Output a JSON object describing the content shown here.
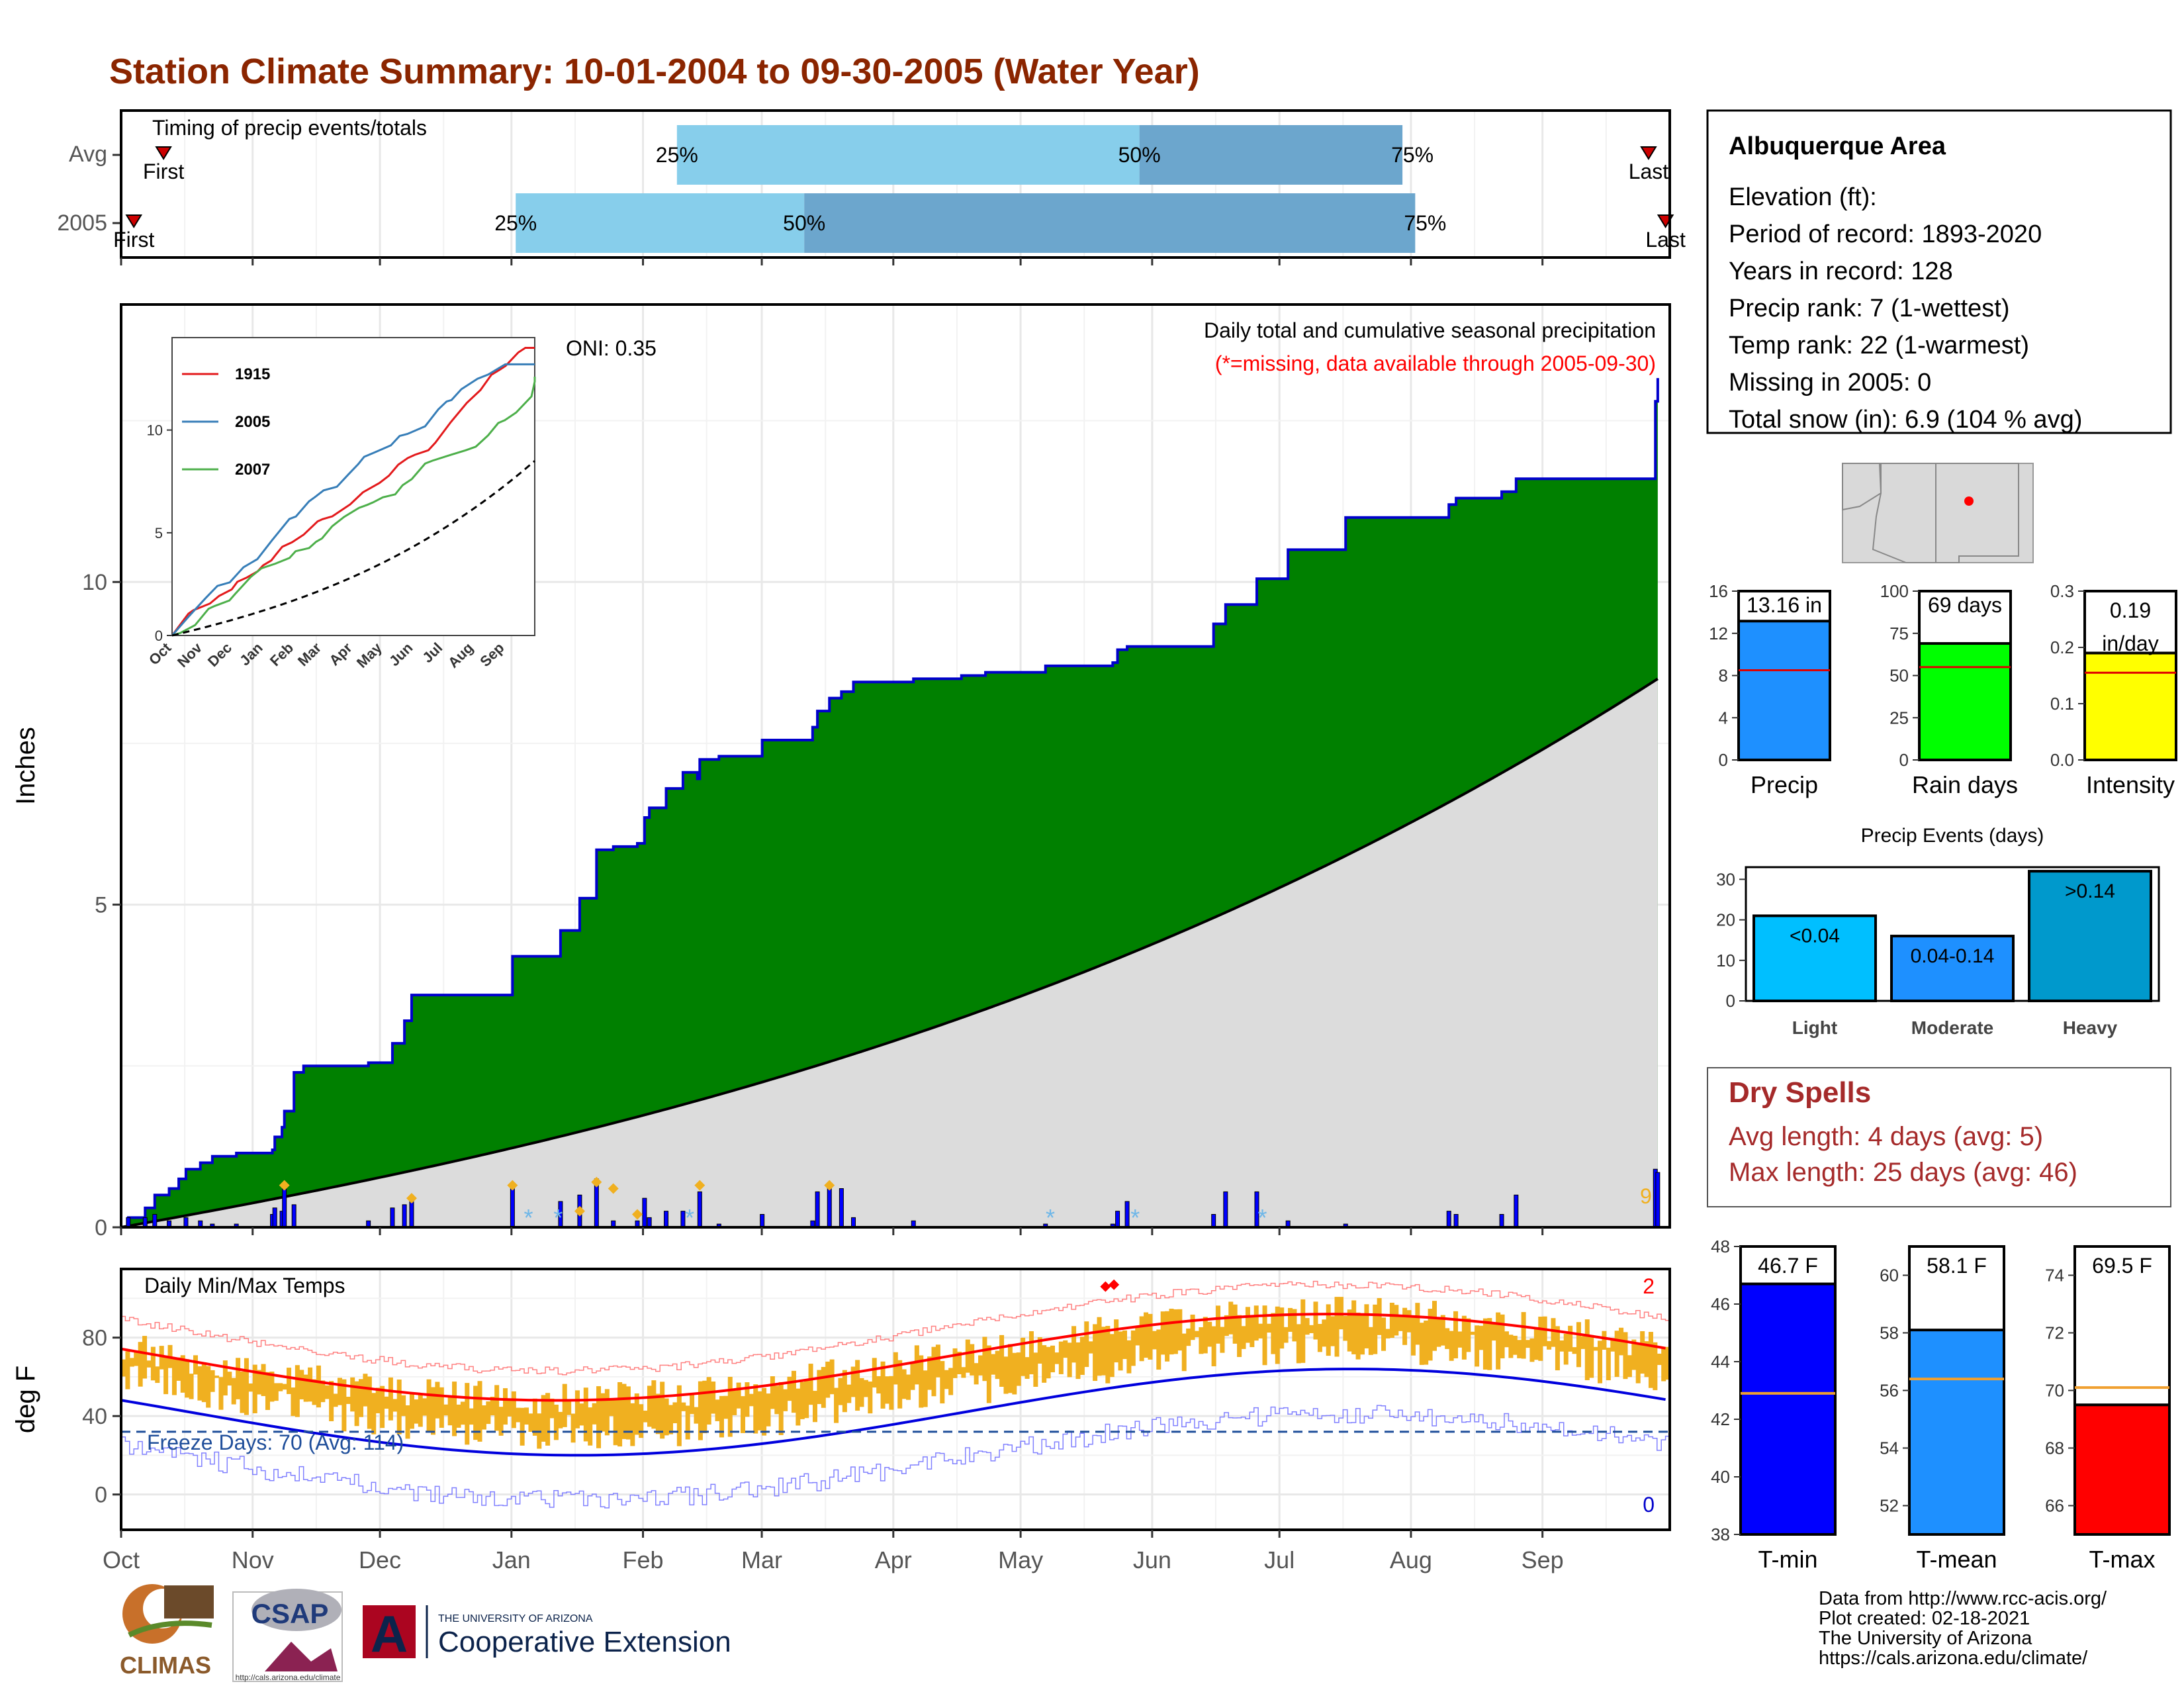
{
  "title": "Station Climate Summary: 10-01-2004 to 09-30-2005 (Water Year)",
  "colors": {
    "title": "#8B2500",
    "green": "#008000",
    "blue_line": "#0000CC",
    "gray_fill": "#DCDCDC",
    "bar_light": "#87CEEB",
    "bar_dark": "#6CA6CD",
    "orange": "#F0B020",
    "red": "#FF0000",
    "dry_spells": "#A52A2A"
  },
  "months": [
    "Oct",
    "Nov",
    "Dec",
    "Jan",
    "Feb",
    "Mar",
    "Apr",
    "May",
    "Jun",
    "Jul",
    "Aug",
    "Sep"
  ],
  "timing_panel": {
    "title": "Timing of precip events/totals",
    "rows": [
      "Avg",
      "2005"
    ],
    "avg": {
      "first_label": "First",
      "first_day": 10,
      "q25_label": "25%",
      "q25_day": 131,
      "q50_label": "50%",
      "q50_day": 240,
      "q75_label": "75%",
      "q75_day": 302,
      "last_label": "Last",
      "last_day": 360
    },
    "y2005": {
      "first_label": "First",
      "first_day": 3,
      "q25_label": "25%",
      "q25_day": 93,
      "q50_label": "50%",
      "q50_day": 161,
      "q75_label": "75%",
      "q75_day": 305,
      "last_label": "Last",
      "last_day": 364
    }
  },
  "precip_panel": {
    "ylabel": "Inches",
    "yticks": [
      0,
      5,
      10
    ],
    "title": "Daily total and cumulative seasonal precipitation",
    "subtitle": "(*=missing, data available through 2005-09-30)",
    "oni": "ONI: 0.35",
    "edge_label": "9",
    "cumulative_steps": [
      [
        0,
        0
      ],
      [
        3,
        0.15
      ],
      [
        10,
        0.3
      ],
      [
        14,
        0.5
      ],
      [
        20,
        0.6
      ],
      [
        24,
        0.75
      ],
      [
        27,
        0.9
      ],
      [
        33,
        1.0
      ],
      [
        38,
        1.1
      ],
      [
        48,
        1.15
      ],
      [
        63,
        1.2
      ],
      [
        64,
        1.4
      ],
      [
        67,
        1.55
      ],
      [
        68,
        1.8
      ],
      [
        72,
        2.4
      ],
      [
        76,
        2.5
      ],
      [
        103,
        2.55
      ],
      [
        113,
        2.85
      ],
      [
        118,
        3.2
      ],
      [
        121,
        3.6
      ],
      [
        163,
        4.2
      ],
      [
        183,
        4.6
      ],
      [
        191,
        5.1
      ],
      [
        198,
        5.85
      ],
      [
        205,
        5.9
      ],
      [
        215,
        5.95
      ],
      [
        218,
        6.35
      ],
      [
        220,
        6.5
      ],
      [
        227,
        6.8
      ],
      [
        234,
        7.05
      ],
      [
        240,
        6.95
      ],
      [
        241,
        7.25
      ],
      [
        249,
        7.3
      ],
      [
        267,
        7.55
      ],
      [
        288,
        7.75
      ],
      [
        290,
        8.0
      ],
      [
        295,
        8.2
      ],
      [
        300,
        8.3
      ],
      [
        305,
        8.45
      ],
      [
        330,
        8.5
      ],
      [
        350,
        8.55
      ],
      [
        360,
        8.6
      ],
      [
        385,
        8.7
      ],
      [
        413,
        8.75
      ],
      [
        415,
        8.95
      ],
      [
        419,
        9.0
      ],
      [
        455,
        9.35
      ],
      [
        460,
        9.65
      ],
      [
        473,
        10.05
      ],
      [
        486,
        10.5
      ],
      [
        510,
        11.0
      ],
      [
        553,
        11.2
      ],
      [
        556,
        11.3
      ],
      [
        575,
        11.4
      ],
      [
        581,
        11.6
      ],
      [
        639,
        12.8
      ],
      [
        640,
        13.16
      ]
    ],
    "daily_bars": [
      [
        3,
        0.15
      ],
      [
        10,
        0.15
      ],
      [
        14,
        0.2
      ],
      [
        20,
        0.1
      ],
      [
        27,
        0.15
      ],
      [
        33,
        0.1
      ],
      [
        38,
        0.05
      ],
      [
        48,
        0.05
      ],
      [
        63,
        0.2
      ],
      [
        64,
        0.3
      ],
      [
        67,
        0.25
      ],
      [
        68,
        0.6
      ],
      [
        72,
        0.35
      ],
      [
        103,
        0.1
      ],
      [
        113,
        0.3
      ],
      [
        118,
        0.35
      ],
      [
        121,
        0.4
      ],
      [
        163,
        0.6
      ],
      [
        183,
        0.4
      ],
      [
        191,
        0.5
      ],
      [
        198,
        0.75
      ],
      [
        205,
        0.1
      ],
      [
        215,
        0.1
      ],
      [
        218,
        0.45
      ],
      [
        220,
        0.15
      ],
      [
        227,
        0.25
      ],
      [
        234,
        0.25
      ],
      [
        241,
        0.55
      ],
      [
        249,
        0.05
      ],
      [
        267,
        0.2
      ],
      [
        288,
        0.1
      ],
      [
        290,
        0.55
      ],
      [
        295,
        0.6
      ],
      [
        300,
        0.6
      ],
      [
        305,
        0.15
      ],
      [
        330,
        0.1
      ],
      [
        385,
        0.05
      ],
      [
        413,
        0.05
      ],
      [
        415,
        0.25
      ],
      [
        419,
        0.4
      ],
      [
        455,
        0.2
      ],
      [
        460,
        0.55
      ],
      [
        473,
        0.55
      ],
      [
        486,
        0.1
      ],
      [
        510,
        0.05
      ],
      [
        553,
        0.25
      ],
      [
        556,
        0.2
      ],
      [
        575,
        0.2
      ],
      [
        581,
        0.5
      ],
      [
        639,
        0.9
      ],
      [
        640,
        0.85
      ]
    ],
    "normal_end": 8.5,
    "missing_stars_days": [
      96,
      103,
      134,
      219,
      239,
      269
    ]
  },
  "temp_panel": {
    "ylabel": "deg F",
    "title": "Daily Min/Max Temps",
    "yticks": [
      0,
      40,
      80
    ],
    "freeze_label": "Freeze Days: 70 (Avg: 114)",
    "freeze_line": 32,
    "top_right_label": "2",
    "bottom_right_label": "0"
  },
  "inset": {
    "years": [
      "1915",
      "2005",
      "2007"
    ],
    "colors": [
      "#E31A1C",
      "#377EB8",
      "#4DAF4A"
    ],
    "yticks": [
      0,
      5,
      10
    ],
    "months": [
      "Oct",
      "Nov",
      "Dec",
      "Jan",
      "Feb",
      "Mar",
      "Apr",
      "May",
      "Jun",
      "Jul",
      "Aug",
      "Sep"
    ]
  },
  "info": {
    "title": "Albuquerque Area",
    "lines": [
      "Elevation (ft):",
      "Period of record: 1893-2020",
      "Years in record: 128",
      "Precip rank: 7 (1-wettest)",
      "Temp rank: 22 (1-warmest)",
      "Missing in 2005: 0",
      "Total snow (in): 6.9 (104 % avg)"
    ]
  },
  "summary_bars": [
    {
      "label": "Precip",
      "value_label": "13.16 in",
      "value": 13.16,
      "avg": 8.5,
      "ymax": 16,
      "yticks": [
        0,
        4,
        8,
        12,
        16
      ],
      "color": "#1E90FF"
    },
    {
      "label": "Rain days",
      "value_label": "69 days",
      "value": 69,
      "avg": 55,
      "ymax": 100,
      "yticks": [
        0,
        25,
        50,
        75,
        100
      ],
      "color": "#00FF00"
    },
    {
      "label": "Intensity",
      "value_label": "0.19\nin/day",
      "value": 0.19,
      "avg": 0.155,
      "ymax": 0.3,
      "yticks": [
        0.0,
        0.1,
        0.2,
        0.3
      ],
      "color": "#FFFF00"
    }
  ],
  "precip_events": {
    "title": "Precip Events (days)",
    "categories": [
      "Light",
      "Moderate",
      "Heavy"
    ],
    "labels": [
      "<0.04",
      "0.04-0.14",
      ">0.14"
    ],
    "values": [
      21,
      16,
      32
    ],
    "yticks": [
      0,
      10,
      20,
      30
    ],
    "colors": [
      "#00BFFF",
      "#1E90FF",
      "#0099CC"
    ]
  },
  "dry_spells": {
    "title": "Dry Spells",
    "avg_length": "Avg length: 4 days (avg: 5)",
    "max_length": "Max length: 25 days (avg: 46)"
  },
  "temp_bars": [
    {
      "label": "T-min",
      "value_label": "46.7 F",
      "value": 46.7,
      "avg": 42.9,
      "ymin": 38,
      "ymax": 48,
      "yticks": [
        38,
        40,
        42,
        44,
        46,
        48
      ],
      "color": "#0000FF"
    },
    {
      "label": "T-mean",
      "value_label": "58.1 F",
      "value": 58.1,
      "avg": 56.4,
      "ymin": 51,
      "ymax": 61,
      "yticks": [
        52,
        54,
        56,
        58,
        60
      ],
      "color": "#1E90FF"
    },
    {
      "label": "T-max",
      "value_label": "69.5 F",
      "value": 69.5,
      "avg": 70.1,
      "ymin": 65,
      "ymax": 75,
      "yticks": [
        66,
        68,
        70,
        72,
        74
      ],
      "color": "#FF0000"
    }
  ],
  "footer": {
    "lines": [
      "Data from http://www.rcc-acis.org/",
      "Plot created: 02-18-2021",
      "The University of Arizona",
      "https://cals.arizona.edu/climate/"
    ],
    "climas": "CLIMAS",
    "csap": "CSAP",
    "csap_url": "http://cals.arizona.edu/climate",
    "ua_small": "THE UNIVERSITY OF ARIZONA",
    "coop": "Cooperative Extension",
    "ua_letter": "A"
  }
}
